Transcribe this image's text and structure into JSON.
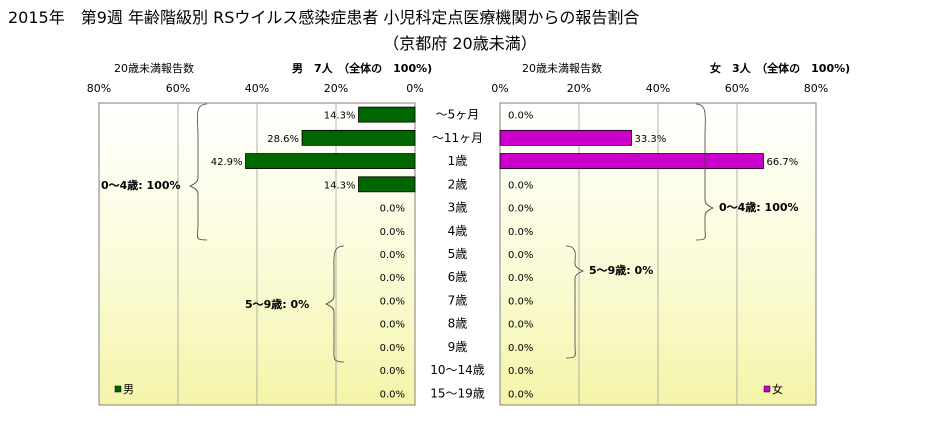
{
  "title_line1": "2015年　第9週 年齢階級別 RSウイルス感染症患者 小児科定点医療機関からの報告割合",
  "title_line2": "（京都府 20歳未満）",
  "chart_data": {
    "type": "bar",
    "orientation": "horizontal",
    "categories": [
      "～5ヶ月",
      "～11ヶ月",
      "1歳",
      "2歳",
      "3歳",
      "4歳",
      "5歳",
      "6歳",
      "7歳",
      "8歳",
      "9歳",
      "10～14歳",
      "15～19歳"
    ],
    "xlim": [
      0,
      80
    ],
    "x_ticks": [
      "80%",
      "60%",
      "40%",
      "20%",
      "0%"
    ],
    "x_ticks_right": [
      "0%",
      "20%",
      "40%",
      "60%",
      "80%"
    ],
    "grid": true,
    "left_panel": {
      "header_left": "20歳未満報告数",
      "header_right": "男　7人　（全体の　100%)",
      "legend": "男",
      "color": "#006600",
      "values": [
        14.3,
        28.6,
        42.9,
        14.3,
        0,
        0,
        0,
        0,
        0,
        0,
        0,
        0,
        0
      ],
      "labels": [
        "14.3%",
        "28.6%",
        "42.9%",
        "14.3%",
        "0.0%",
        "0.0%",
        "0.0%",
        "0.0%",
        "0.0%",
        "0.0%",
        "0.0%",
        "0.0%",
        "0.0%"
      ],
      "group_labels": [
        "0～4歳: 100%",
        "5～9歳: 0%"
      ]
    },
    "right_panel": {
      "header_left": "20歳未満報告数",
      "header_right": "女　3人　（全体の　100%)",
      "legend": "女",
      "color": "#CC00CC",
      "values": [
        0,
        33.3,
        66.7,
        0,
        0,
        0,
        0,
        0,
        0,
        0,
        0,
        0,
        0
      ],
      "labels": [
        "0.0%",
        "33.3%",
        "66.7%",
        "0.0%",
        "0.0%",
        "0.0%",
        "0.0%",
        "0.0%",
        "0.0%",
        "0.0%",
        "0.0%",
        "0.0%",
        "0.0%"
      ],
      "group_labels": [
        "0～4歳: 100%",
        "5～9歳: 0%"
      ]
    }
  }
}
